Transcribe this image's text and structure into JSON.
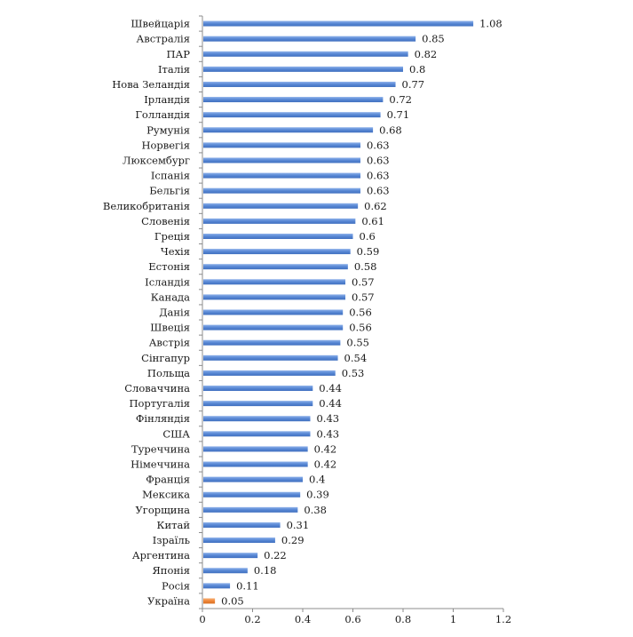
{
  "chart_data": {
    "type": "bar",
    "orientation": "horizontal",
    "title": "",
    "xlabel": "",
    "ylabel": "",
    "xlim": [
      0,
      1.2
    ],
    "x_ticks": [
      "0",
      "0.2",
      "0.4",
      "0.6",
      "0.8",
      "1",
      "1.2"
    ],
    "grid": false,
    "legend": "none",
    "bar_color": "#5b8ad6",
    "highlight_color": "#f0883a",
    "highlight_category": "Україна",
    "categories": [
      "Швейцарія",
      "Австралія",
      "ПАР",
      "Італія",
      "Нова Зеландія",
      "Ірландія",
      "Голландія",
      "Румунія",
      "Норвегія",
      "Люксембург",
      "Іспанія",
      "Бельгія",
      "Великобританія",
      "Словенія",
      "Греція",
      "Чехія",
      "Естонія",
      "Ісландія",
      "Канада",
      "Данія",
      "Швеція",
      "Австрія",
      "Сінгапур",
      "Польща",
      "Словаччина",
      "Португалія",
      "Фінляндія",
      "США",
      "Туреччина",
      "Німеччина",
      "Франція",
      "Мексика",
      "Угорщина",
      "Китай",
      "Ізраїль",
      "Аргентина",
      "Японія",
      "Росія",
      "Україна"
    ],
    "values": [
      1.08,
      0.85,
      0.82,
      0.8,
      0.77,
      0.72,
      0.71,
      0.68,
      0.63,
      0.63,
      0.63,
      0.63,
      0.62,
      0.61,
      0.6,
      0.59,
      0.58,
      0.57,
      0.57,
      0.56,
      0.56,
      0.55,
      0.54,
      0.53,
      0.44,
      0.44,
      0.43,
      0.43,
      0.42,
      0.42,
      0.4,
      0.39,
      0.38,
      0.31,
      0.29,
      0.22,
      0.18,
      0.11,
      0.05
    ]
  }
}
